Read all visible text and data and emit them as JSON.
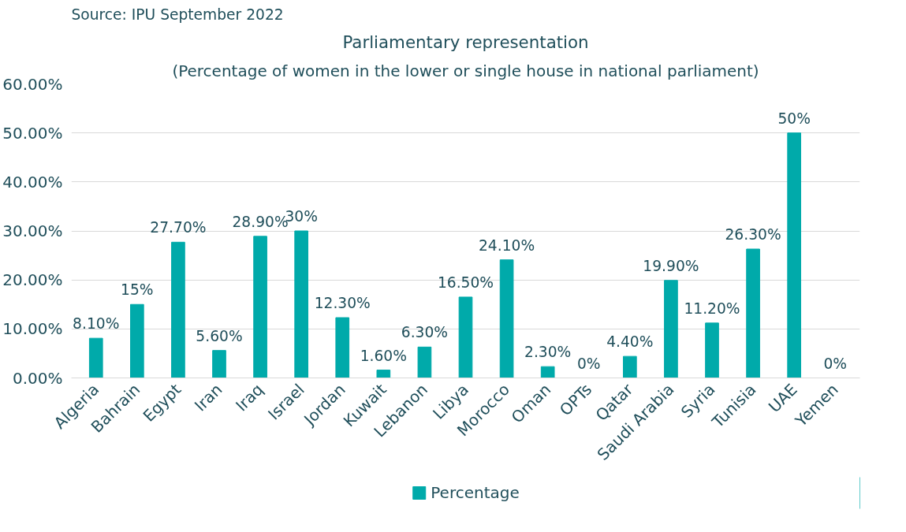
{
  "chart_data": {
    "type": "bar",
    "title": "Parliamentary representation",
    "subtitle": "(Percentage of women in the lower or single house in national parliament)",
    "annotations": [
      "Source: IPU September 2022"
    ],
    "categories": [
      "Algeria",
      "Bahrain",
      "Egypt",
      "Iran",
      "Iraq",
      "Israel",
      "Jordan",
      "Kuwait",
      "Lebanon",
      "Libya",
      "Morocco",
      "Oman",
      "OPTs",
      "Qatar",
      "Saudi Arabia",
      "Syria",
      "Tunisia",
      "UAE",
      "Yemen"
    ],
    "series": [
      {
        "name": "Percentage",
        "color": "#00aaaa",
        "values": [
          8.1,
          15,
          27.7,
          5.6,
          28.9,
          30,
          12.3,
          1.6,
          6.3,
          16.5,
          24.1,
          2.3,
          0,
          4.4,
          19.9,
          11.2,
          26.3,
          50,
          0
        ],
        "value_labels": [
          "8.10%",
          "15%",
          "27.70%",
          "5.60%",
          "28.90%",
          "30%",
          "12.30%",
          "1.60%",
          "6.30%",
          "16.50%",
          "24.10%",
          "2.30%",
          "0%",
          "4.40%",
          "19.90%",
          "11.20%",
          "26.30%",
          "50%",
          "0%"
        ]
      }
    ],
    "ylim": [
      0,
      60
    ],
    "yticks": [
      {
        "value": 0,
        "label": "0.00%"
      },
      {
        "value": 10,
        "label": "10.00%"
      },
      {
        "value": 20,
        "label": "20.00%"
      },
      {
        "value": 30,
        "label": "30.00%"
      },
      {
        "value": 40,
        "label": "40.00%"
      },
      {
        "value": 50,
        "label": "50.00%"
      },
      {
        "value": 60,
        "label": "60.00%"
      }
    ],
    "grid": "y",
    "legend": "bottom"
  }
}
